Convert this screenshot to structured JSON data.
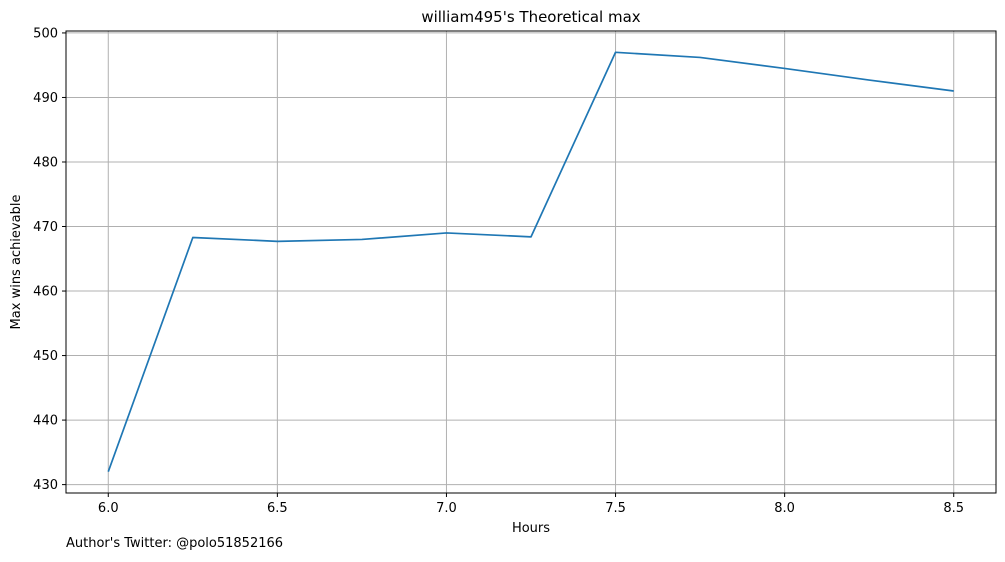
{
  "chart_data": {
    "type": "line",
    "title": "william495's Theoretical max",
    "xlabel": "Hours",
    "ylabel": "Max wins achievable",
    "xlim": [
      5.875,
      8.625
    ],
    "ylim": [
      428.7,
      500.3
    ],
    "xticks": [
      6.0,
      6.5,
      7.0,
      7.5,
      8.0,
      8.5
    ],
    "xtick_labels": [
      "6.0",
      "6.5",
      "7.0",
      "7.5",
      "8.0",
      "8.5"
    ],
    "yticks": [
      430,
      440,
      450,
      460,
      470,
      480,
      490,
      500
    ],
    "ytick_labels": [
      "430",
      "440",
      "450",
      "460",
      "470",
      "480",
      "490",
      "500"
    ],
    "grid": true,
    "line_color": "#1f77b4",
    "x": [
      6.0,
      6.25,
      6.5,
      6.75,
      7.0,
      7.25,
      7.5,
      7.75,
      8.0,
      8.25,
      8.5
    ],
    "y": [
      432.0,
      468.3,
      467.7,
      468.0,
      469.0,
      468.4,
      497.0,
      496.2,
      494.5,
      492.7,
      491.0
    ]
  },
  "credit_text": "Author's Twitter: @polo51852166"
}
